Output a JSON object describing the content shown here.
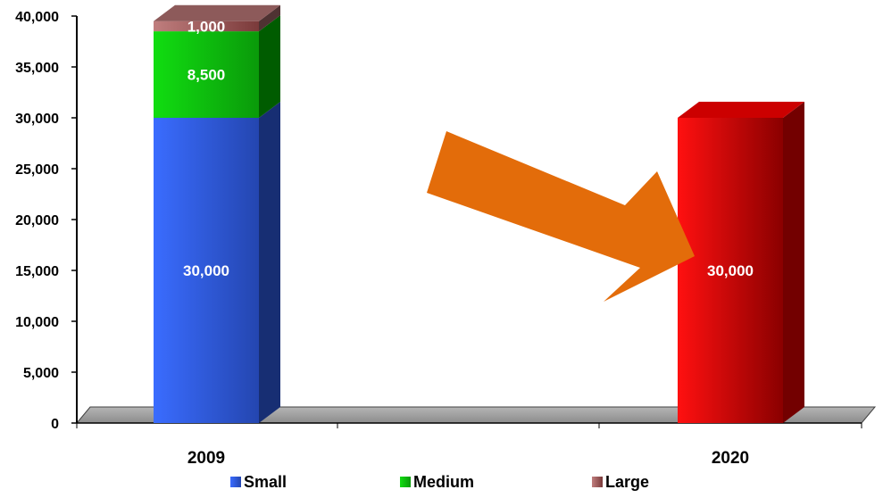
{
  "chart_data": {
    "type": "bar",
    "stacked": true,
    "categories": [
      "2009",
      "2020"
    ],
    "series": [
      {
        "name": "Small",
        "values": [
          30000,
          30000
        ],
        "color": "#3366ff",
        "colors": [
          "#3366ff",
          "#ff0000"
        ]
      },
      {
        "name": "Medium",
        "values": [
          8500,
          null
        ],
        "color": "#00cc00"
      },
      {
        "name": "Large",
        "values": [
          1000,
          null
        ],
        "color": "#b07070"
      }
    ],
    "data_labels": [
      {
        "series": "Small",
        "category": "2009",
        "text": "30,000"
      },
      {
        "series": "Medium",
        "category": "2009",
        "text": "8,500"
      },
      {
        "series": "Large",
        "category": "2009",
        "text": "1,000"
      },
      {
        "series": "Small",
        "category": "2020",
        "text": "30,000"
      }
    ],
    "ylim": [
      0,
      40000
    ],
    "ytick_labels": [
      "0",
      "5,000",
      "10,000",
      "15,000",
      "20,000",
      "25,000",
      "30,000",
      "35,000",
      "40,000"
    ],
    "legend": {
      "placement": "bottom",
      "entries": [
        "Small",
        "Medium",
        "Large"
      ]
    },
    "grid": false,
    "annotation": {
      "type": "arrow",
      "color": "#e36c0a",
      "from_category": "2009",
      "to_category": "2020"
    },
    "title": "",
    "xlabel": "",
    "ylabel": ""
  }
}
